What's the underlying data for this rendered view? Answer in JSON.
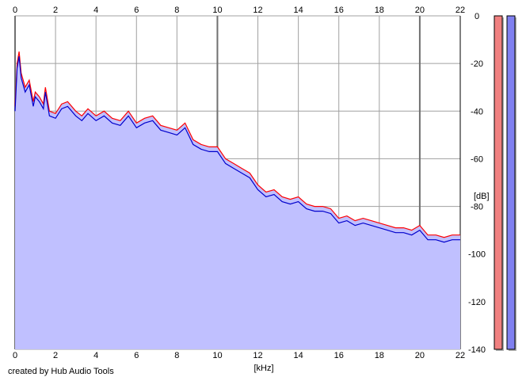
{
  "footer": {
    "credit": "created by Hub Audio Tools"
  },
  "colors": {
    "fill": "#c0c0ff",
    "left_channel": "#ff0000",
    "right_channel": "#0000cc",
    "grid": "#a0a0a0",
    "grid_major": "#707070",
    "meter_left": "#f08080",
    "meter_right": "#8080f0"
  },
  "chart_data": {
    "type": "line",
    "title": "",
    "xlabel": "[kHz]",
    "ylabel": "[dB]",
    "xlim": [
      0,
      22
    ],
    "ylim": [
      -140,
      0
    ],
    "x_ticks": [
      0,
      2,
      4,
      6,
      8,
      10,
      12,
      14,
      16,
      18,
      20,
      22
    ],
    "x_major": [
      0,
      10,
      20
    ],
    "y_ticks": [
      0,
      -20,
      -40,
      -60,
      -80,
      -100,
      -120,
      -140
    ],
    "grid": true,
    "area_fill": true,
    "series": [
      {
        "color": "#ff0000",
        "x": [
          0,
          0.1,
          0.2,
          0.3,
          0.5,
          0.7,
          0.9,
          1.0,
          1.2,
          1.4,
          1.5,
          1.7,
          2.0,
          2.3,
          2.6,
          3.0,
          3.3,
          3.6,
          4.0,
          4.4,
          4.8,
          5.2,
          5.6,
          6.0,
          6.4,
          6.8,
          7.2,
          7.6,
          8.0,
          8.4,
          8.8,
          9.2,
          9.6,
          10.0,
          10.4,
          10.8,
          11.2,
          11.6,
          12.0,
          12.4,
          12.8,
          13.2,
          13.6,
          14.0,
          14.4,
          14.8,
          15.2,
          15.6,
          16.0,
          16.4,
          16.8,
          17.2,
          17.6,
          18.0,
          18.4,
          18.8,
          19.2,
          19.6,
          20.0,
          20.4,
          20.8,
          21.2,
          21.6,
          22.0
        ],
        "values": [
          -38,
          -20,
          -15,
          -24,
          -30,
          -27,
          -36,
          -32,
          -34,
          -37,
          -30,
          -40,
          -41,
          -37,
          -36,
          -40,
          -42,
          -39,
          -42,
          -40,
          -43,
          -44,
          -40,
          -45,
          -43,
          -42,
          -46,
          -47,
          -48,
          -45,
          -52,
          -54,
          -55,
          -55,
          -60,
          -62,
          -64,
          -66,
          -71,
          -74,
          -73,
          -76,
          -77,
          -76,
          -79,
          -80,
          -80,
          -81,
          -85,
          -84,
          -86,
          -85,
          -86,
          -87,
          -88,
          -89,
          -89,
          -90,
          -88,
          -92,
          -92,
          -93,
          -92,
          -92
        ]
      },
      {
        "color": "#0000cc",
        "x": [
          0,
          0.1,
          0.2,
          0.3,
          0.5,
          0.7,
          0.9,
          1.0,
          1.2,
          1.4,
          1.5,
          1.7,
          2.0,
          2.3,
          2.6,
          3.0,
          3.3,
          3.6,
          4.0,
          4.4,
          4.8,
          5.2,
          5.6,
          6.0,
          6.4,
          6.8,
          7.2,
          7.6,
          8.0,
          8.4,
          8.8,
          9.2,
          9.6,
          10.0,
          10.4,
          10.8,
          11.2,
          11.6,
          12.0,
          12.4,
          12.8,
          13.2,
          13.6,
          14.0,
          14.4,
          14.8,
          15.2,
          15.6,
          16.0,
          16.4,
          16.8,
          17.2,
          17.6,
          18.0,
          18.4,
          18.8,
          19.2,
          19.6,
          20.0,
          20.4,
          20.8,
          21.2,
          21.6,
          22.0
        ],
        "values": [
          -40,
          -22,
          -17,
          -26,
          -32,
          -29,
          -38,
          -34,
          -36,
          -39,
          -32,
          -42,
          -43,
          -39,
          -38,
          -42,
          -44,
          -41,
          -44,
          -42,
          -45,
          -46,
          -42,
          -47,
          -45,
          -44,
          -48,
          -49,
          -50,
          -47,
          -54,
          -56,
          -57,
          -57,
          -62,
          -64,
          -66,
          -68,
          -73,
          -76,
          -75,
          -78,
          -79,
          -78,
          -81,
          -82,
          -82,
          -83,
          -87,
          -86,
          -88,
          -87,
          -88,
          -89,
          -90,
          -91,
          -91,
          -92,
          -90,
          -94,
          -94,
          -95,
          -94,
          -94
        ]
      }
    ]
  }
}
